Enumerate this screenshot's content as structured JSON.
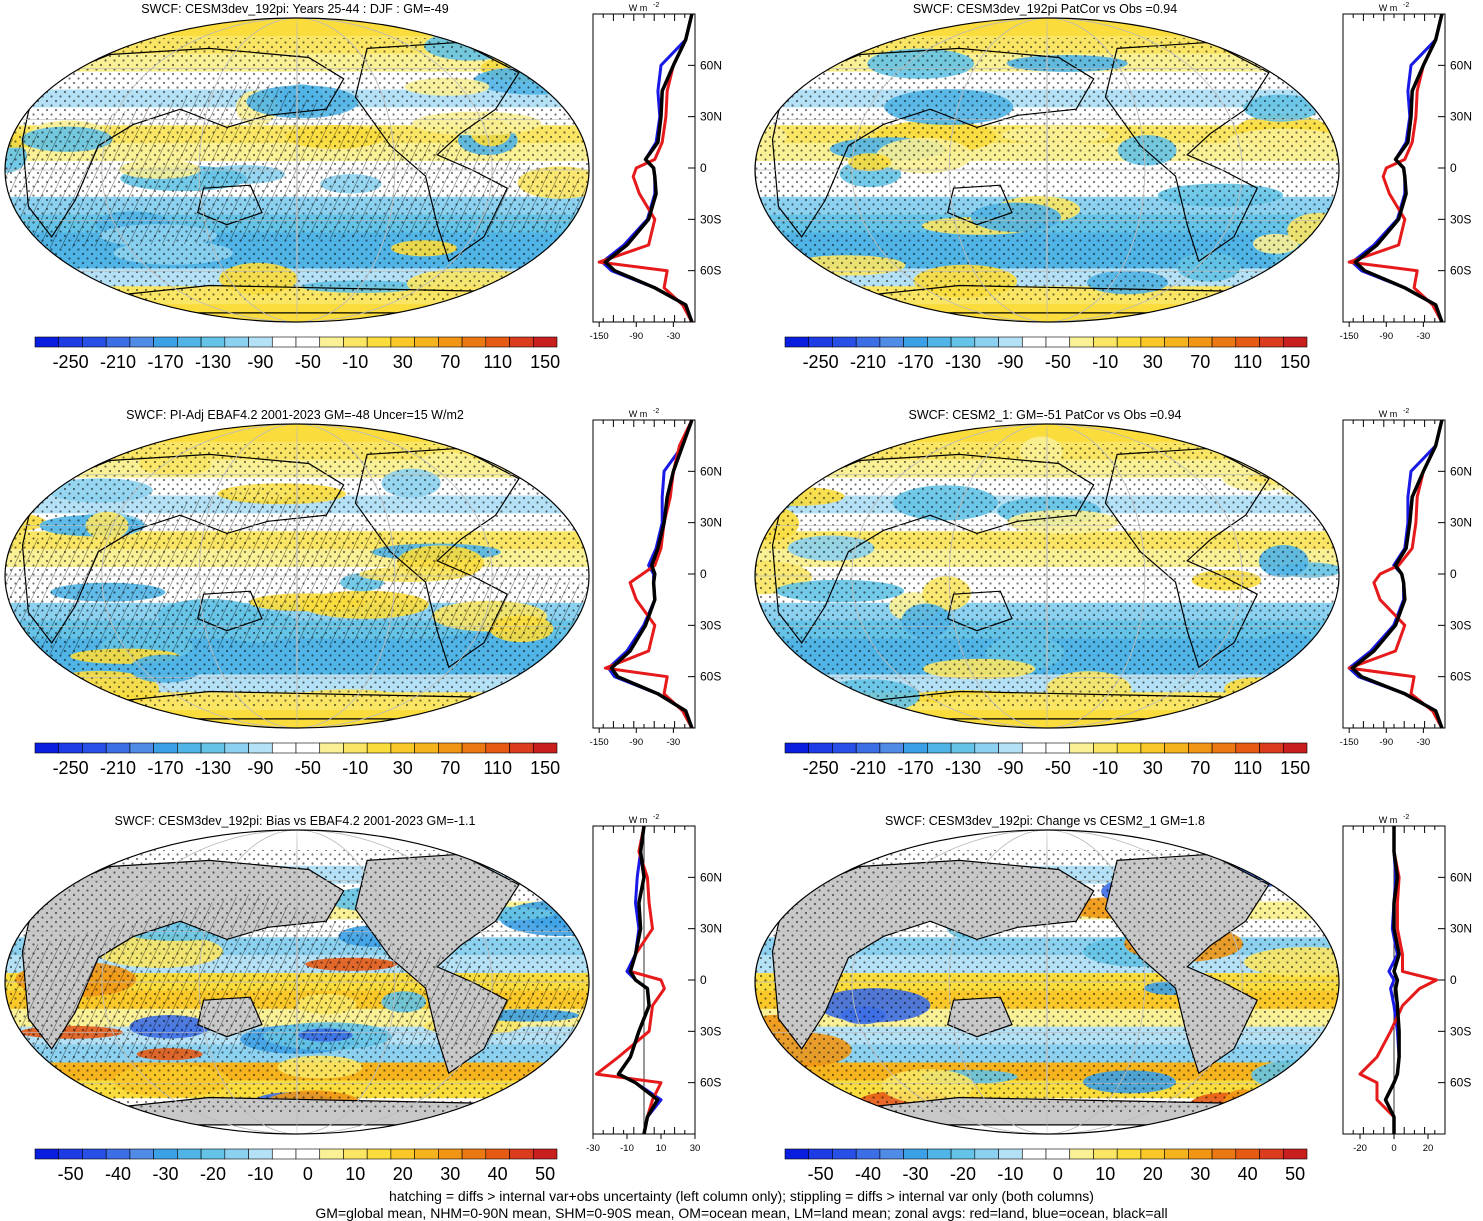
{
  "footer": {
    "line1": "hatching = diffs > internal var+obs uncertainty (left column only); stippling = diffs > internal var only (both columns)",
    "line2": "GM=global mean, NHM=0-90N mean, SHM=0-90S mean, OM=ocean mean, LM=land mean; zonal avgs: red=land, blue=ocean, black=all"
  },
  "colors": {
    "ocean_avg": "#1a1ae6",
    "land_avg": "#e61a1a",
    "all_avg": "#000000",
    "land_mask": "#c8c8c8"
  },
  "common": {
    "lat_ticks": [
      "60N",
      "30N",
      "0",
      "30S",
      "60S"
    ],
    "units_label": "W m",
    "units_exp": "-2"
  },
  "chart_data": [
    {
      "type": "heatmap",
      "title": "SWCF: CESM3dev_192pi: Years 25-44 : DJF : GM=-49",
      "colorbar": {
        "levels": [
          "-250",
          "-210",
          "-170",
          "-130",
          "-90",
          "-50",
          "-10",
          "30",
          "70",
          "110",
          "150"
        ],
        "n_boxes": 22,
        "range": [
          -270,
          170
        ]
      },
      "hatched": true,
      "zonal": {
        "xticks": [
          "-150",
          "-90",
          "-30"
        ],
        "xlim": [
          -160,
          5
        ],
        "lat": [
          90,
          75,
          60,
          45,
          30,
          15,
          5,
          0,
          -5,
          -15,
          -30,
          -45,
          -55,
          -60,
          -70,
          -80,
          -90
        ],
        "all": [
          0,
          -10,
          -30,
          -48,
          -50,
          -55,
          -75,
          -62,
          -60,
          -58,
          -70,
          -105,
          -140,
          -125,
          -60,
          -10,
          0
        ],
        "ocean": [
          0,
          -10,
          -50,
          -55,
          -52,
          -58,
          -75,
          -62,
          -60,
          -60,
          -72,
          -110,
          -145,
          -130,
          -60,
          -10,
          0
        ],
        "land": [
          0,
          -10,
          -30,
          -40,
          -42,
          -48,
          -60,
          -90,
          -95,
          -85,
          -60,
          -70,
          -150,
          -40,
          -45,
          -15,
          0
        ]
      }
    },
    {
      "type": "heatmap",
      "title": "SWCF: CESM3dev_192pi PatCor vs Obs =0.94",
      "colorbar": {
        "levels": [
          "-250",
          "-210",
          "-170",
          "-130",
          "-90",
          "-50",
          "-10",
          "30",
          "70",
          "110",
          "150"
        ],
        "n_boxes": 22,
        "range": [
          -270,
          170
        ]
      },
      "hatched": false,
      "zonal": {
        "xticks": [
          "-150",
          "-90",
          "-30"
        ],
        "xlim": [
          -160,
          5
        ],
        "lat": [
          90,
          75,
          60,
          45,
          30,
          15,
          5,
          0,
          -5,
          -15,
          -30,
          -45,
          -55,
          -60,
          -70,
          -80,
          -90
        ],
        "all": [
          0,
          -10,
          -30,
          -48,
          -50,
          -55,
          -75,
          -62,
          -60,
          -58,
          -70,
          -105,
          -140,
          -125,
          -60,
          -10,
          0
        ],
        "ocean": [
          0,
          -10,
          -50,
          -55,
          -52,
          -58,
          -75,
          -62,
          -60,
          -60,
          -72,
          -110,
          -145,
          -130,
          -60,
          -10,
          0
        ],
        "land": [
          0,
          -10,
          -30,
          -40,
          -42,
          -48,
          -60,
          -90,
          -95,
          -85,
          -60,
          -70,
          -150,
          -40,
          -45,
          -15,
          0
        ]
      }
    },
    {
      "type": "heatmap",
      "title": "SWCF: PI-Adj EBAF4.2 2001-2023 GM=-48 Uncer=15 W/m2",
      "colorbar": {
        "levels": [
          "-250",
          "-210",
          "-170",
          "-130",
          "-90",
          "-50",
          "-10",
          "30",
          "70",
          "110",
          "150"
        ],
        "n_boxes": 22,
        "range": [
          -270,
          170
        ]
      },
      "hatched": true,
      "zonal": {
        "xticks": [
          "-150",
          "-90",
          "-30"
        ],
        "xlim": [
          -160,
          5
        ],
        "lat": [
          90,
          75,
          60,
          45,
          30,
          15,
          5,
          0,
          -5,
          -15,
          -30,
          -45,
          -55,
          -60,
          -70,
          -80,
          -90
        ],
        "all": [
          0,
          -15,
          -30,
          -40,
          -45,
          -55,
          -65,
          -60,
          -62,
          -60,
          -75,
          -100,
          -130,
          -120,
          -55,
          -10,
          0
        ],
        "ocean": [
          0,
          -15,
          -45,
          -48,
          -48,
          -58,
          -70,
          -62,
          -62,
          -60,
          -78,
          -105,
          -135,
          -125,
          -55,
          -10,
          0
        ],
        "land": [
          0,
          -20,
          -30,
          -35,
          -45,
          -50,
          -60,
          -80,
          -100,
          -90,
          -60,
          -70,
          -140,
          -40,
          -45,
          -15,
          0
        ]
      }
    },
    {
      "type": "heatmap",
      "title": "SWCF: CESM2_1: GM=-51 PatCor vs Obs =0.94",
      "colorbar": {
        "levels": [
          "-250",
          "-210",
          "-170",
          "-130",
          "-90",
          "-50",
          "-10",
          "30",
          "70",
          "110",
          "150"
        ],
        "n_boxes": 22,
        "range": [
          -270,
          170
        ]
      },
      "hatched": false,
      "zonal": {
        "xticks": [
          "-150",
          "-90",
          "-30"
        ],
        "xlim": [
          -160,
          5
        ],
        "lat": [
          90,
          75,
          60,
          45,
          30,
          15,
          5,
          0,
          -5,
          -15,
          -30,
          -45,
          -55,
          -60,
          -70,
          -80,
          -90
        ],
        "all": [
          0,
          -10,
          -30,
          -48,
          -52,
          -58,
          -75,
          -65,
          -62,
          -60,
          -75,
          -110,
          -145,
          -130,
          -60,
          -10,
          0
        ],
        "ocean": [
          0,
          -10,
          -50,
          -55,
          -55,
          -60,
          -78,
          -65,
          -62,
          -62,
          -78,
          -115,
          -150,
          -135,
          -60,
          -10,
          0
        ],
        "land": [
          0,
          -10,
          -30,
          -40,
          -42,
          -48,
          -70,
          -100,
          -110,
          -100,
          -60,
          -75,
          -150,
          -45,
          -50,
          -15,
          0
        ]
      }
    },
    {
      "type": "heatmap",
      "title": "SWCF: CESM3dev_192pi: Bias vs EBAF4.2 2001-2023 GM=-1.1",
      "colorbar": {
        "levels": [
          "-50",
          "-40",
          "-30",
          "-20",
          "-10",
          "0",
          "10",
          "20",
          "30",
          "40",
          "50"
        ],
        "n_boxes": 22,
        "range": [
          -55,
          55
        ]
      },
      "hatched": true,
      "zonal": {
        "xticks": [
          "-30",
          "-10",
          "10",
          "30"
        ],
        "xlim": [
          -30,
          30
        ],
        "lat": [
          90,
          75,
          60,
          45,
          30,
          15,
          5,
          0,
          -5,
          -15,
          -30,
          -45,
          -55,
          -60,
          -70,
          -80,
          -90
        ],
        "all": [
          0,
          -2,
          0,
          -3,
          -2,
          -5,
          -8,
          -5,
          2,
          3,
          -3,
          -8,
          -15,
          -5,
          8,
          2,
          0
        ],
        "ocean": [
          0,
          -2,
          -4,
          -5,
          -3,
          -5,
          -10,
          -5,
          2,
          3,
          -3,
          -8,
          -15,
          -5,
          10,
          2,
          0
        ],
        "land": [
          0,
          -3,
          2,
          3,
          5,
          -5,
          -8,
          10,
          12,
          5,
          3,
          -15,
          -28,
          10,
          5,
          2,
          0
        ]
      }
    },
    {
      "type": "heatmap",
      "title": "SWCF: CESM3dev_192pi: Change vs CESM2_1 GM=1.8",
      "colorbar": {
        "levels": [
          "-50",
          "-40",
          "-30",
          "-20",
          "-10",
          "0",
          "10",
          "20",
          "30",
          "40",
          "50"
        ],
        "n_boxes": 22,
        "range": [
          -55,
          55
        ]
      },
      "hatched": false,
      "zonal": {
        "xticks": [
          "-20",
          "0",
          "20"
        ],
        "xlim": [
          -30,
          30
        ],
        "lat": [
          90,
          75,
          60,
          45,
          30,
          15,
          5,
          0,
          -5,
          -15,
          -30,
          -45,
          -55,
          -60,
          -70,
          -80,
          -90
        ],
        "all": [
          0,
          0,
          2,
          0,
          0,
          3,
          0,
          2,
          1,
          2,
          3,
          3,
          2,
          0,
          -5,
          0,
          0
        ],
        "ocean": [
          0,
          0,
          1,
          0,
          -1,
          2,
          -3,
          0,
          -2,
          0,
          2,
          3,
          2,
          0,
          -5,
          0,
          0
        ],
        "land": [
          0,
          0,
          3,
          2,
          2,
          5,
          5,
          25,
          15,
          5,
          -2,
          -10,
          -20,
          -10,
          -10,
          0,
          0
        ]
      }
    }
  ]
}
